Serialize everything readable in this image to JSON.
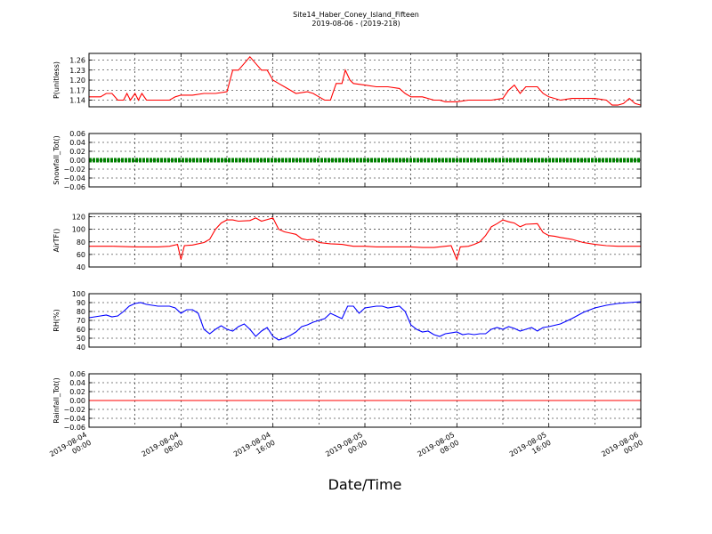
{
  "chart_data": {
    "type": "line",
    "title": "Site14_Haber_Coney_Island_Fifteen",
    "subtitle": "2019-08-06 - (2019-218)",
    "xlabel": "Date/Time",
    "x_range": [
      "2019-08-04 00:00",
      "2019-08-06 00:00"
    ],
    "x_tick_labels": [
      [
        "2019-08-04",
        "00:00"
      ],
      [
        "2019-08-04",
        "08:00"
      ],
      [
        "2019-08-04",
        "16:00"
      ],
      [
        "2019-08-05",
        "00:00"
      ],
      [
        "2019-08-05",
        "08:00"
      ],
      [
        "2019-08-05",
        "16:00"
      ],
      [
        "2019-08-06",
        "00:00"
      ]
    ],
    "grid": true,
    "panels": [
      {
        "ylabel": "P(unitless)",
        "ylim": [
          1.12,
          1.28
        ],
        "yticks": [
          "1.14",
          "1.17",
          "1.20",
          "1.23",
          "1.26"
        ],
        "ytick_values": [
          1.14,
          1.17,
          1.2,
          1.23,
          1.26
        ],
        "color": "#ff0000",
        "marker": false,
        "points": [
          [
            0,
            1.15
          ],
          [
            1,
            1.15
          ],
          [
            1.5,
            1.16
          ],
          [
            2,
            1.16
          ],
          [
            2.5,
            1.14
          ],
          [
            3,
            1.14
          ],
          [
            3.3,
            1.16
          ],
          [
            3.6,
            1.14
          ],
          [
            4,
            1.16
          ],
          [
            4.3,
            1.14
          ],
          [
            4.6,
            1.16
          ],
          [
            5,
            1.14
          ],
          [
            5.5,
            1.14
          ],
          [
            6,
            1.14
          ],
          [
            7,
            1.14
          ],
          [
            7.5,
            1.15
          ],
          [
            8,
            1.155
          ],
          [
            9,
            1.155
          ],
          [
            10,
            1.16
          ],
          [
            11,
            1.16
          ],
          [
            12,
            1.165
          ],
          [
            12.5,
            1.23
          ],
          [
            13,
            1.23
          ],
          [
            13.5,
            1.25
          ],
          [
            14,
            1.27
          ],
          [
            14.5,
            1.25
          ],
          [
            15,
            1.23
          ],
          [
            15.5,
            1.23
          ],
          [
            16,
            1.2
          ],
          [
            16.5,
            1.19
          ],
          [
            17,
            1.18
          ],
          [
            18,
            1.16
          ],
          [
            19,
            1.165
          ],
          [
            19.5,
            1.16
          ],
          [
            20,
            1.15
          ],
          [
            20.5,
            1.14
          ],
          [
            21,
            1.14
          ],
          [
            21.5,
            1.19
          ],
          [
            22,
            1.19
          ],
          [
            22.3,
            1.23
          ],
          [
            22.7,
            1.2
          ],
          [
            23,
            1.19
          ],
          [
            24,
            1.185
          ],
          [
            25,
            1.18
          ],
          [
            26,
            1.18
          ],
          [
            27,
            1.175
          ],
          [
            27.5,
            1.16
          ],
          [
            28,
            1.15
          ],
          [
            29,
            1.15
          ],
          [
            30,
            1.14
          ],
          [
            30.5,
            1.14
          ],
          [
            31,
            1.135
          ],
          [
            32,
            1.135
          ],
          [
            33,
            1.14
          ],
          [
            34,
            1.14
          ],
          [
            35,
            1.14
          ],
          [
            36,
            1.145
          ],
          [
            36.5,
            1.17
          ],
          [
            37,
            1.185
          ],
          [
            37.5,
            1.16
          ],
          [
            38,
            1.18
          ],
          [
            39,
            1.18
          ],
          [
            39.5,
            1.16
          ],
          [
            40,
            1.15
          ],
          [
            41,
            1.14
          ],
          [
            42,
            1.145
          ],
          [
            43,
            1.145
          ],
          [
            44,
            1.145
          ],
          [
            45,
            1.14
          ],
          [
            45.5,
            1.125
          ],
          [
            46,
            1.125
          ],
          [
            46.5,
            1.13
          ],
          [
            47,
            1.145
          ],
          [
            47.5,
            1.13
          ],
          [
            48,
            1.125
          ]
        ]
      },
      {
        "ylabel": "Snowfall_Tot()",
        "ylim": [
          -0.06,
          0.06
        ],
        "yticks": [
          "−0.06",
          "−0.04",
          "−0.02",
          "0.00",
          "0.02",
          "0.04",
          "0.06"
        ],
        "ytick_values": [
          -0.06,
          -0.04,
          -0.02,
          0,
          0.02,
          0.04,
          0.06
        ],
        "color": "#008000",
        "marker": true,
        "points": [
          [
            0,
            0
          ],
          [
            48,
            0
          ]
        ]
      },
      {
        "ylabel": "AirTF()",
        "ylim": [
          40,
          125
        ],
        "yticks": [
          "40",
          "60",
          "80",
          "100",
          "120"
        ],
        "ytick_values": [
          40,
          60,
          80,
          100,
          120
        ],
        "color": "#ff0000",
        "marker": false,
        "points": [
          [
            0,
            73
          ],
          [
            2,
            73
          ],
          [
            4,
            72
          ],
          [
            6,
            72
          ],
          [
            7,
            73
          ],
          [
            7.7,
            76
          ],
          [
            8,
            52
          ],
          [
            8.3,
            74
          ],
          [
            9,
            75
          ],
          [
            10,
            79
          ],
          [
            10.5,
            84
          ],
          [
            11,
            100
          ],
          [
            11.5,
            110
          ],
          [
            12,
            115
          ],
          [
            12.5,
            115
          ],
          [
            13,
            113
          ],
          [
            14,
            114
          ],
          [
            14.5,
            118
          ],
          [
            15,
            113
          ],
          [
            16,
            118
          ],
          [
            16.5,
            100
          ],
          [
            17,
            96
          ],
          [
            17.5,
            94
          ],
          [
            18,
            92
          ],
          [
            18.5,
            85
          ],
          [
            19,
            83
          ],
          [
            19.5,
            84
          ],
          [
            20,
            79
          ],
          [
            21,
            77
          ],
          [
            22,
            76
          ],
          [
            23,
            73
          ],
          [
            24,
            73
          ],
          [
            25,
            72
          ],
          [
            26,
            72
          ],
          [
            27,
            72
          ],
          [
            28,
            72
          ],
          [
            29,
            71
          ],
          [
            30,
            71
          ],
          [
            31,
            73
          ],
          [
            31.5,
            74
          ],
          [
            32,
            52
          ],
          [
            32.3,
            72
          ],
          [
            33,
            73
          ],
          [
            33.5,
            76
          ],
          [
            34,
            80
          ],
          [
            34.5,
            90
          ],
          [
            35,
            104
          ],
          [
            35.5,
            109
          ],
          [
            36,
            115
          ],
          [
            36.5,
            112
          ],
          [
            37,
            110
          ],
          [
            37.5,
            104
          ],
          [
            38,
            108
          ],
          [
            39,
            109
          ],
          [
            39.5,
            95
          ],
          [
            40,
            90
          ],
          [
            40.5,
            89
          ],
          [
            41,
            87
          ],
          [
            42,
            84
          ],
          [
            43,
            79
          ],
          [
            44,
            76
          ],
          [
            45,
            74
          ],
          [
            46,
            73
          ],
          [
            48,
            73
          ]
        ]
      },
      {
        "ylabel": "RH(%)",
        "ylim": [
          40,
          100
        ],
        "yticks": [
          "40",
          "50",
          "60",
          "70",
          "80",
          "90",
          "100"
        ],
        "ytick_values": [
          40,
          50,
          60,
          70,
          80,
          90,
          100
        ],
        "color": "#0000ff",
        "marker": false,
        "points": [
          [
            0,
            73
          ],
          [
            0.5,
            74
          ],
          [
            1,
            75
          ],
          [
            1.5,
            76
          ],
          [
            2,
            74
          ],
          [
            2.5,
            75
          ],
          [
            3,
            80
          ],
          [
            3.5,
            86
          ],
          [
            4,
            89
          ],
          [
            4.5,
            90
          ],
          [
            5,
            88
          ],
          [
            6,
            86
          ],
          [
            7,
            86
          ],
          [
            7.5,
            84
          ],
          [
            8,
            78
          ],
          [
            8.5,
            82
          ],
          [
            9,
            82
          ],
          [
            9.5,
            78
          ],
          [
            10,
            60
          ],
          [
            10.5,
            55
          ],
          [
            11,
            60
          ],
          [
            11.5,
            64
          ],
          [
            12,
            60
          ],
          [
            12.5,
            58
          ],
          [
            13,
            63
          ],
          [
            13.5,
            66
          ],
          [
            14,
            60
          ],
          [
            14.5,
            52
          ],
          [
            15,
            58
          ],
          [
            15.5,
            62
          ],
          [
            16,
            52
          ],
          [
            16.5,
            48
          ],
          [
            17,
            50
          ],
          [
            17.5,
            53
          ],
          [
            18,
            57
          ],
          [
            18.5,
            63
          ],
          [
            19,
            65
          ],
          [
            19.5,
            68
          ],
          [
            20,
            70
          ],
          [
            20.5,
            72
          ],
          [
            21,
            78
          ],
          [
            21.5,
            75
          ],
          [
            22,
            72
          ],
          [
            22.5,
            86
          ],
          [
            23,
            86
          ],
          [
            23.5,
            78
          ],
          [
            24,
            84
          ],
          [
            25,
            86
          ],
          [
            25.5,
            86
          ],
          [
            26,
            84
          ],
          [
            27,
            86
          ],
          [
            27.5,
            80
          ],
          [
            28,
            65
          ],
          [
            28.5,
            60
          ],
          [
            29,
            57
          ],
          [
            29.5,
            58
          ],
          [
            30,
            54
          ],
          [
            30.5,
            52
          ],
          [
            31,
            55
          ],
          [
            32,
            57
          ],
          [
            32.5,
            54
          ],
          [
            33,
            55
          ],
          [
            33.5,
            54
          ],
          [
            34,
            55
          ],
          [
            34.5,
            55
          ],
          [
            35,
            60
          ],
          [
            35.5,
            62
          ],
          [
            36,
            60
          ],
          [
            36.5,
            63
          ],
          [
            37,
            61
          ],
          [
            37.5,
            58
          ],
          [
            38,
            60
          ],
          [
            38.5,
            62
          ],
          [
            39,
            58
          ],
          [
            39.5,
            62
          ],
          [
            40,
            63
          ],
          [
            41,
            66
          ],
          [
            42,
            72
          ],
          [
            43,
            79
          ],
          [
            44,
            84
          ],
          [
            45,
            87
          ],
          [
            46,
            89
          ],
          [
            47,
            90
          ],
          [
            48,
            91
          ]
        ]
      },
      {
        "ylabel": "Rainfall_Tot()",
        "ylim": [
          -0.06,
          0.06
        ],
        "yticks": [
          "−0.06",
          "−0.04",
          "−0.02",
          "0.00",
          "0.02",
          "0.04",
          "0.06"
        ],
        "ytick_values": [
          -0.06,
          -0.04,
          -0.02,
          0,
          0.02,
          0.04,
          0.06
        ],
        "color": "#ff0000",
        "marker": false,
        "points": [
          [
            0,
            0
          ],
          [
            48,
            0
          ]
        ]
      }
    ]
  }
}
